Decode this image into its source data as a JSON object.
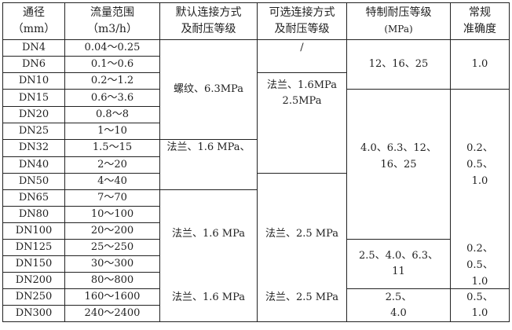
{
  "headers": {
    "diameter": [
      "通径",
      "（mm）"
    ],
    "flow": [
      "流量范围",
      "（m3/h）"
    ],
    "default_conn": [
      "默认连接方式",
      "及耐压等级"
    ],
    "optional_conn": [
      "可选连接方式",
      "及耐压等级"
    ],
    "special_pressure": [
      "特制耐压等级",
      "(MPa)"
    ],
    "accuracy": [
      "常规",
      "准确度"
    ]
  },
  "rows": [
    {
      "dn": "DN4",
      "flow": "0.04～0.25"
    },
    {
      "dn": "DN6",
      "flow": "0.1～0.6"
    },
    {
      "dn": "DN10",
      "flow": "0.2～1.2"
    },
    {
      "dn": "DN15",
      "flow": "0.6～3.6"
    },
    {
      "dn": "DN20",
      "flow": "0.8～8"
    },
    {
      "dn": "DN25",
      "flow": "1～10"
    },
    {
      "dn": "DN32",
      "flow": "1.5～15"
    },
    {
      "dn": "DN40",
      "flow": "2～20"
    },
    {
      "dn": "DN50",
      "flow": "4～40"
    },
    {
      "dn": "DN65",
      "flow": "7～70"
    },
    {
      "dn": "DN80",
      "flow": "10～100"
    },
    {
      "dn": "DN100",
      "flow": "20～200"
    },
    {
      "dn": "DN125",
      "flow": "25～250"
    },
    {
      "dn": "DN150",
      "flow": "30～300"
    },
    {
      "dn": "DN200",
      "flow": "80～800"
    },
    {
      "dn": "DN250",
      "flow": "160～1600"
    },
    {
      "dn": "DN300",
      "flow": "240～2400"
    }
  ],
  "default_conn": {
    "g1": "螺纹、6.3MPa",
    "g2": "法兰、1.6 MPa、",
    "g3a": "法兰、1.6 MPa",
    "g3b": "法兰、1.6 MPa"
  },
  "optional_conn": {
    "g1": "/",
    "g2": [
      "法兰、1.6MPa",
      "2.5MPa"
    ],
    "g3a": "法兰、2.5 MPa",
    "g3b": "法兰、2.5 MPa"
  },
  "special_pressure": {
    "g1": "12、16、25",
    "g2": [
      "4.0、6.3、12、",
      "16、25"
    ],
    "g3": [
      "2.5、4.0、6.3、",
      "11"
    ],
    "g4": [
      "2.5、",
      "4.0"
    ]
  },
  "accuracy": {
    "g1": "1.0",
    "g2a": [
      "0.2、",
      "0.5、",
      "1.0"
    ],
    "g2b": [
      "0.2、",
      "0.5、",
      "1.0"
    ],
    "g3": [
      "0.5、",
      "1.0"
    ]
  }
}
